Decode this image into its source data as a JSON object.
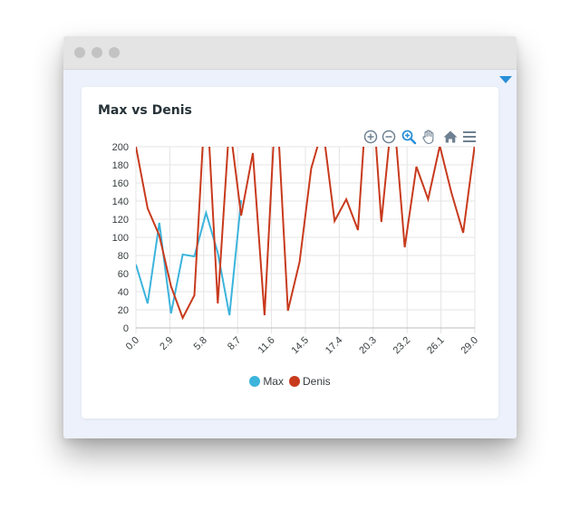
{
  "chart_data": {
    "type": "line",
    "title": "Max vs Denis",
    "xlabel": "",
    "ylabel": "",
    "xlim": [
      0,
      29
    ],
    "ylim": [
      0,
      200
    ],
    "x_ticks": [
      "0.0",
      "2.9",
      "5.8",
      "8.7",
      "11.6",
      "14.5",
      "17.4",
      "20.3",
      "23.2",
      "26.1",
      "29.0"
    ],
    "y_ticks": [
      "0",
      "20",
      "40",
      "60",
      "80",
      "100",
      "120",
      "140",
      "160",
      "180",
      "200"
    ],
    "grid": true,
    "legend_position": "bottom",
    "series": [
      {
        "name": "Max",
        "color": "#3cb4dc",
        "x": [
          0,
          1,
          2,
          3,
          4,
          5,
          6,
          7,
          8,
          9
        ],
        "values": [
          70,
          27,
          116,
          16,
          81,
          79,
          127,
          83,
          14,
          141
        ]
      },
      {
        "name": "Denis",
        "color": "#c83a1d",
        "x": [
          0,
          1,
          2,
          3,
          4,
          5,
          6,
          7,
          8,
          9,
          10,
          11,
          12,
          13,
          14,
          15,
          16,
          17,
          18,
          19,
          20,
          21,
          22,
          23,
          24,
          25,
          26,
          27,
          28,
          29
        ],
        "values": [
          200,
          132,
          102,
          46,
          11,
          36,
          268,
          27,
          227,
          124,
          193,
          14,
          261,
          19,
          73,
          176,
          221,
          118,
          142,
          108,
          303,
          117,
          247,
          89,
          178,
          142,
          201,
          149,
          105,
          203
        ]
      }
    ]
  },
  "toolbar": {
    "zoom_in_icon": "zoom-in-icon",
    "zoom_out_icon": "zoom-out-icon",
    "selection_zoom_icon": "magnifier-icon",
    "pan_icon": "hand-pan-icon",
    "reset_icon": "home-icon",
    "menu_icon": "hamburger-menu-icon"
  },
  "colors": {
    "accent": "#2a8fd6",
    "grid": "#e4e4e4",
    "axis": "#bdbdbd",
    "tick_label": "#373d3f"
  }
}
